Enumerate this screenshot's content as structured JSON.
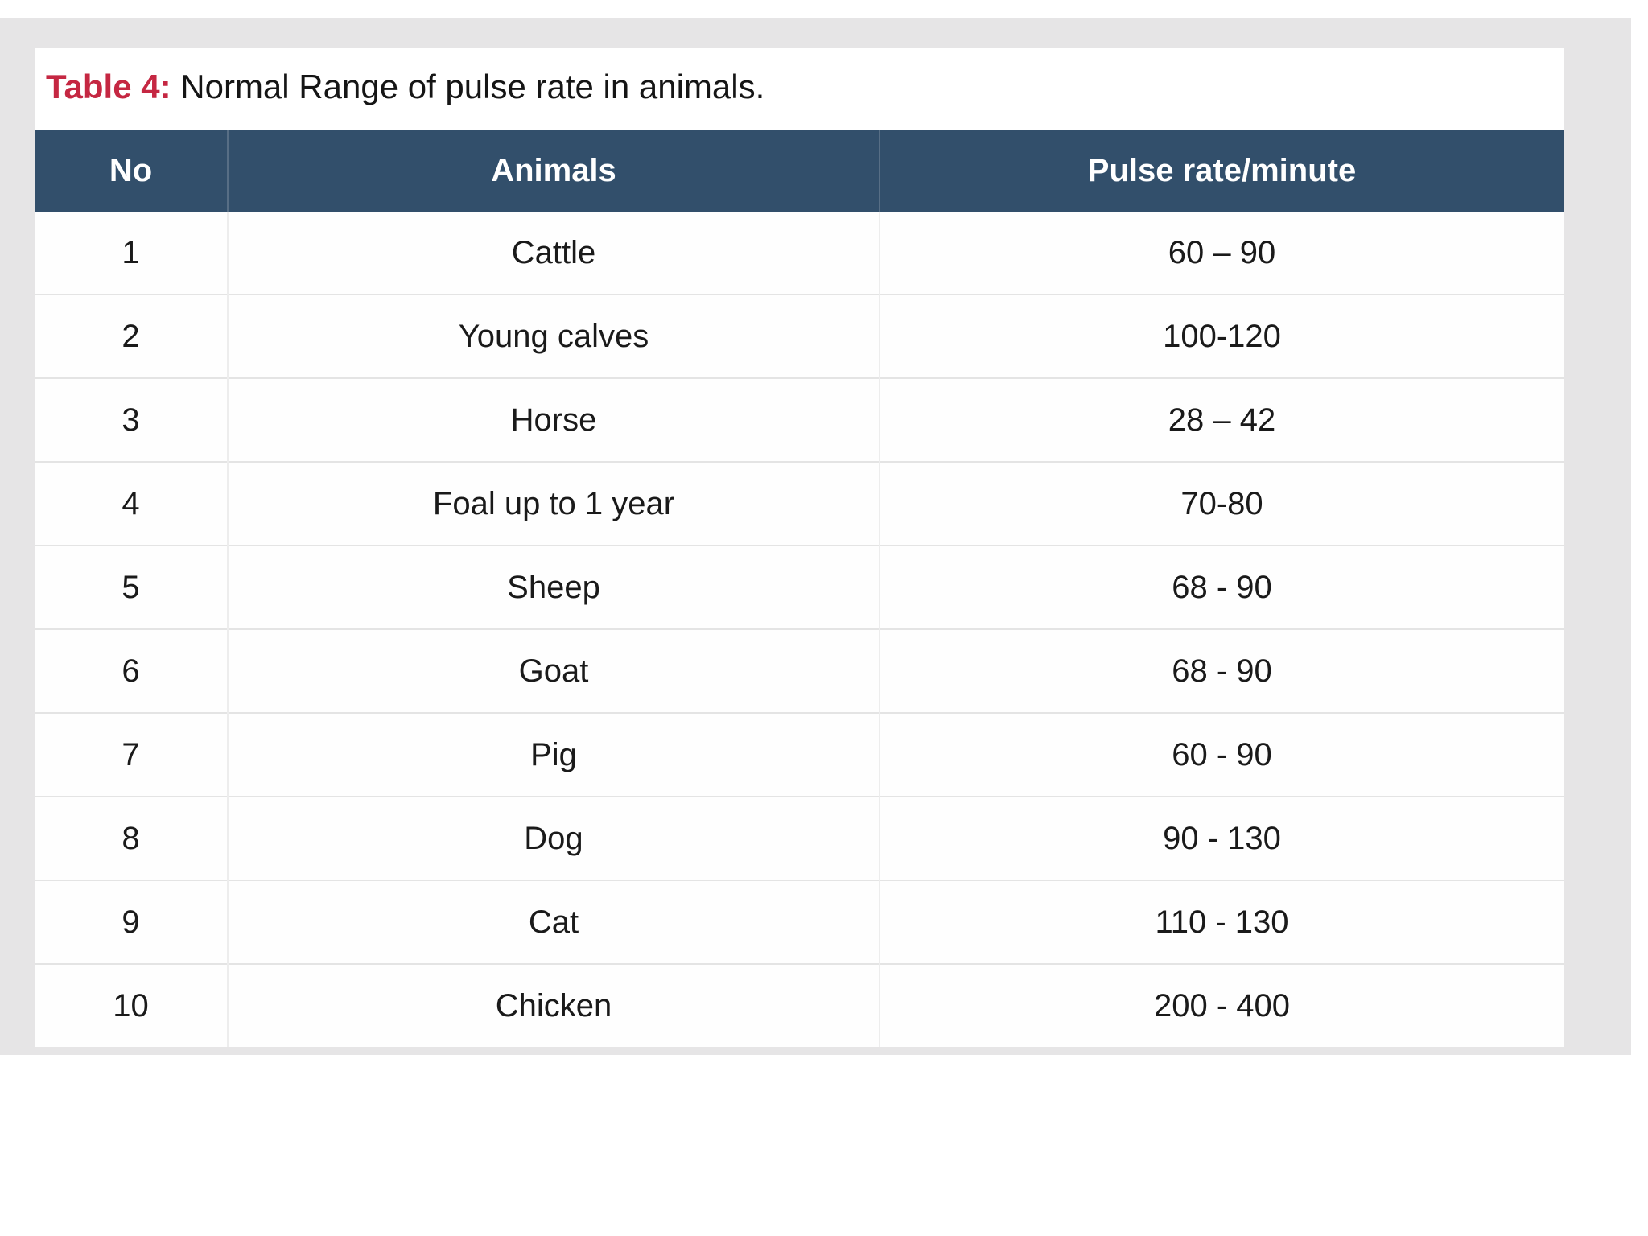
{
  "document": {
    "table_label": "Table 4:",
    "table_caption": " Normal Range of pulse rate in animals."
  },
  "table": {
    "headers": [
      "No",
      "Animals",
      "Pulse rate/minute"
    ],
    "rows": [
      [
        "1",
        "Cattle",
        "60 – 90"
      ],
      [
        "2",
        "Young calves",
        "100-120"
      ],
      [
        "3",
        "Horse",
        "28 – 42"
      ],
      [
        "4",
        "Foal up to 1 year",
        "70-80"
      ],
      [
        "5",
        "Sheep",
        "68 - 90"
      ],
      [
        "6",
        "Goat",
        "68 - 90"
      ],
      [
        "7",
        "Pig",
        "60 - 90"
      ],
      [
        "8",
        "Dog",
        "90 - 130"
      ],
      [
        "9",
        "Cat",
        "110 - 130"
      ],
      [
        "10",
        "Chicken",
        "200 - 400"
      ]
    ]
  },
  "colors": {
    "accent_red": "#c52742",
    "header_bg": "#324f6b",
    "header_text": "#ffffff",
    "page_gray": "#e6e5e6"
  }
}
